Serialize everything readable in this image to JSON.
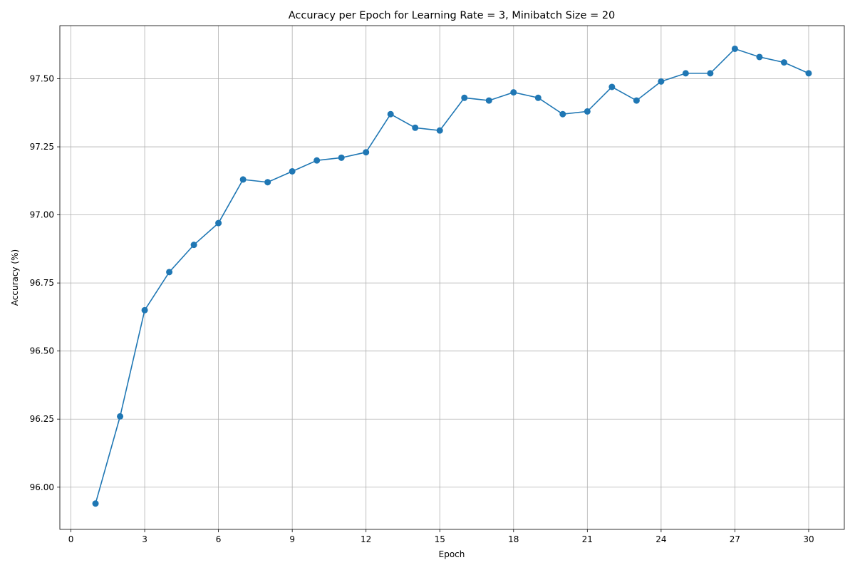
{
  "chart_data": {
    "type": "line",
    "title": "Accuracy per Epoch for Learning Rate = 3, Minibatch Size = 20",
    "xlabel": "Epoch",
    "ylabel": "Accuracy (%)",
    "xlim": [
      -0.45,
      31.45
    ],
    "ylim": [
      95.845,
      97.695
    ],
    "xticks": [
      0,
      3,
      6,
      9,
      12,
      15,
      18,
      21,
      24,
      27,
      30
    ],
    "xtick_labels": [
      "0",
      "3",
      "6",
      "9",
      "12",
      "15",
      "18",
      "21",
      "24",
      "27",
      "30"
    ],
    "yticks": [
      96.0,
      96.25,
      96.5,
      96.75,
      97.0,
      97.25,
      97.5
    ],
    "ytick_labels": [
      "96.00",
      "96.25",
      "96.50",
      "96.75",
      "97.00",
      "97.25",
      "97.50"
    ],
    "grid": true,
    "color": "#1f77b4",
    "series": [
      {
        "x": [
          1,
          2,
          3,
          4,
          5,
          6,
          7,
          8,
          9,
          10,
          11,
          12,
          13,
          14,
          15,
          16,
          17,
          18,
          19,
          20,
          21,
          22,
          23,
          24,
          25,
          26,
          27,
          28,
          29,
          30
        ],
        "values": [
          95.94,
          96.26,
          96.65,
          96.79,
          96.89,
          96.97,
          97.13,
          97.12,
          97.16,
          97.2,
          97.21,
          97.23,
          97.37,
          97.32,
          97.31,
          97.43,
          97.42,
          97.45,
          97.43,
          97.37,
          97.38,
          97.47,
          97.42,
          97.49,
          97.52,
          97.52,
          97.61,
          97.58,
          97.56,
          97.52
        ]
      }
    ]
  }
}
